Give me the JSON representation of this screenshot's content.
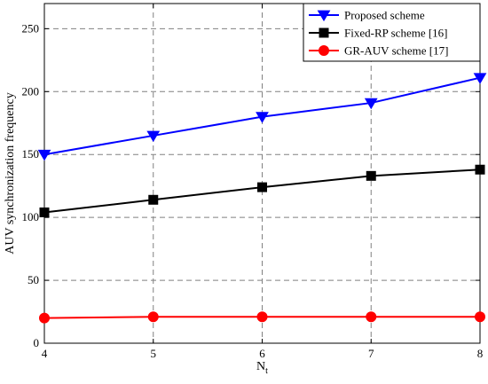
{
  "chart_data": {
    "type": "line",
    "title": "",
    "xlabel": "N",
    "xlabel_sub": "t",
    "ylabel": "AUV synchronization frequency",
    "x": [
      4,
      5,
      6,
      7,
      8
    ],
    "xlim": [
      4,
      8
    ],
    "ylim": [
      0,
      270
    ],
    "xticks": [
      "4",
      "5",
      "6",
      "7",
      "8"
    ],
    "yticks": [
      "0",
      "50",
      "100",
      "150",
      "200",
      "250"
    ],
    "ytick_values": [
      0,
      50,
      100,
      150,
      200,
      250
    ],
    "grid": true,
    "legend_position": "top-right",
    "series": [
      {
        "name": "Proposed scheme",
        "values": [
          150,
          165,
          180,
          191,
          211
        ],
        "color": "#0000ff",
        "marker": "triangle-down"
      },
      {
        "name": "Fixed-RP scheme [16]",
        "values": [
          104,
          114,
          124,
          133,
          138
        ],
        "color": "#000000",
        "marker": "square"
      },
      {
        "name": "GR-AUV scheme [17]",
        "values": [
          20,
          21,
          21,
          21,
          21
        ],
        "color": "#ff0000",
        "marker": "circle"
      }
    ]
  }
}
